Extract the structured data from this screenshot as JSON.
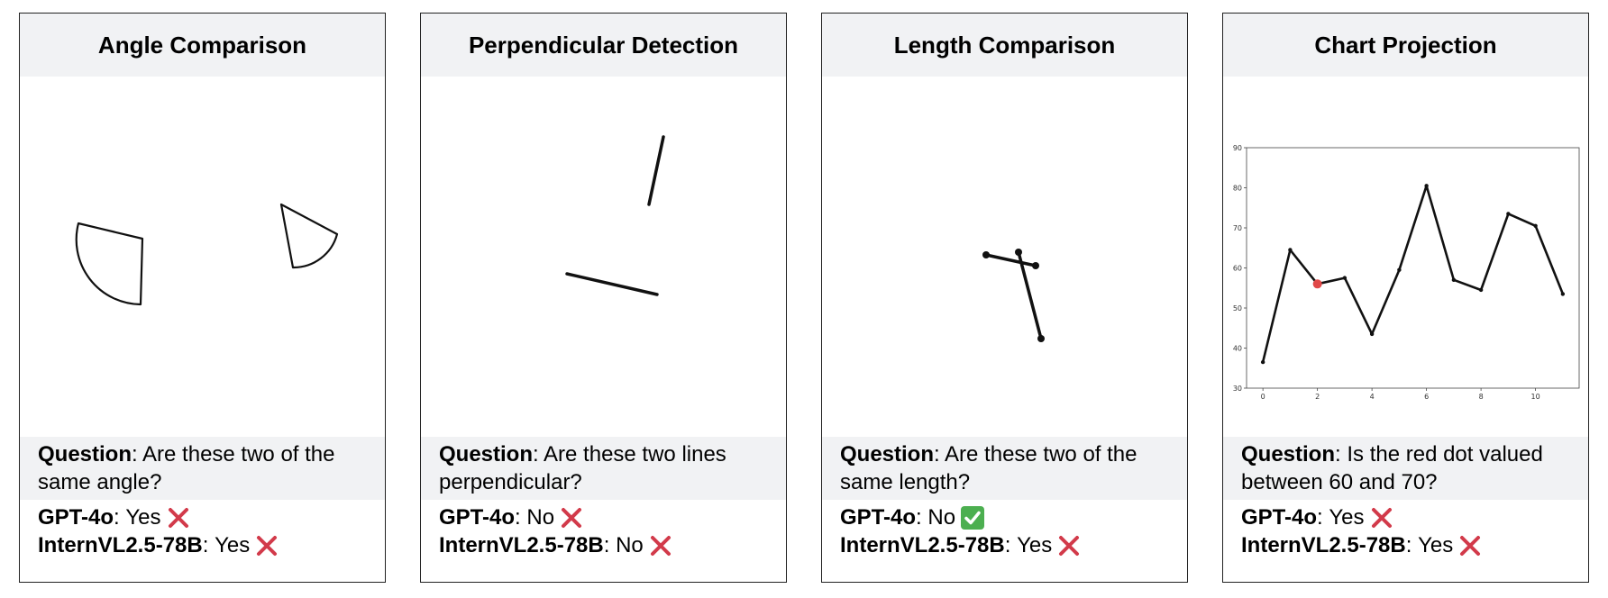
{
  "labels": {
    "question": "Question",
    "gpt": "GPT-4o",
    "intern": "InternVL2.5-78B",
    "separator": ":"
  },
  "colors": {
    "wrong": "#d23a4a",
    "correct": "#4caf50",
    "red_dot": "#e04848",
    "header_bg": "#f1f2f4"
  },
  "panels": [
    {
      "title": "Angle Comparison",
      "question": "Are these two of the same angle?",
      "gpt_answer": "Yes",
      "gpt_mark": "cross-icon",
      "intern_answer": "Yes",
      "intern_mark": "cross-icon"
    },
    {
      "title": "Perpendicular Detection",
      "question": "Are these two lines perpendicular?",
      "gpt_answer": "No",
      "gpt_mark": "cross-icon",
      "intern_answer": "No",
      "intern_mark": "cross-icon"
    },
    {
      "title": "Length Comparison",
      "question": "Are these two of the same length?",
      "gpt_answer": "No",
      "gpt_mark": "check-icon",
      "intern_answer": "Yes",
      "intern_mark": "cross-icon"
    },
    {
      "title": "Chart Projection",
      "question": "Is the red dot valued between 60 and 70?",
      "gpt_answer": "Yes",
      "gpt_mark": "cross-icon",
      "intern_answer": "Yes",
      "intern_mark": "cross-icon"
    }
  ],
  "chart_data": {
    "type": "line",
    "x": [
      0,
      1,
      2,
      3,
      4,
      5,
      6,
      7,
      8,
      9,
      10,
      11
    ],
    "values": [
      36.5,
      64.5,
      56,
      57.5,
      43.5,
      59.5,
      80.5,
      57,
      54.5,
      73.5,
      70.5,
      53.5
    ],
    "highlight_index": 2,
    "xlim": [
      -0.6,
      11.6
    ],
    "ylim": [
      30,
      90
    ],
    "xticks": [
      0,
      2,
      4,
      6,
      8,
      10
    ],
    "yticks": [
      30,
      40,
      50,
      60,
      70,
      80,
      90
    ],
    "title": "",
    "xlabel": "",
    "ylabel": "",
    "grid": false
  }
}
